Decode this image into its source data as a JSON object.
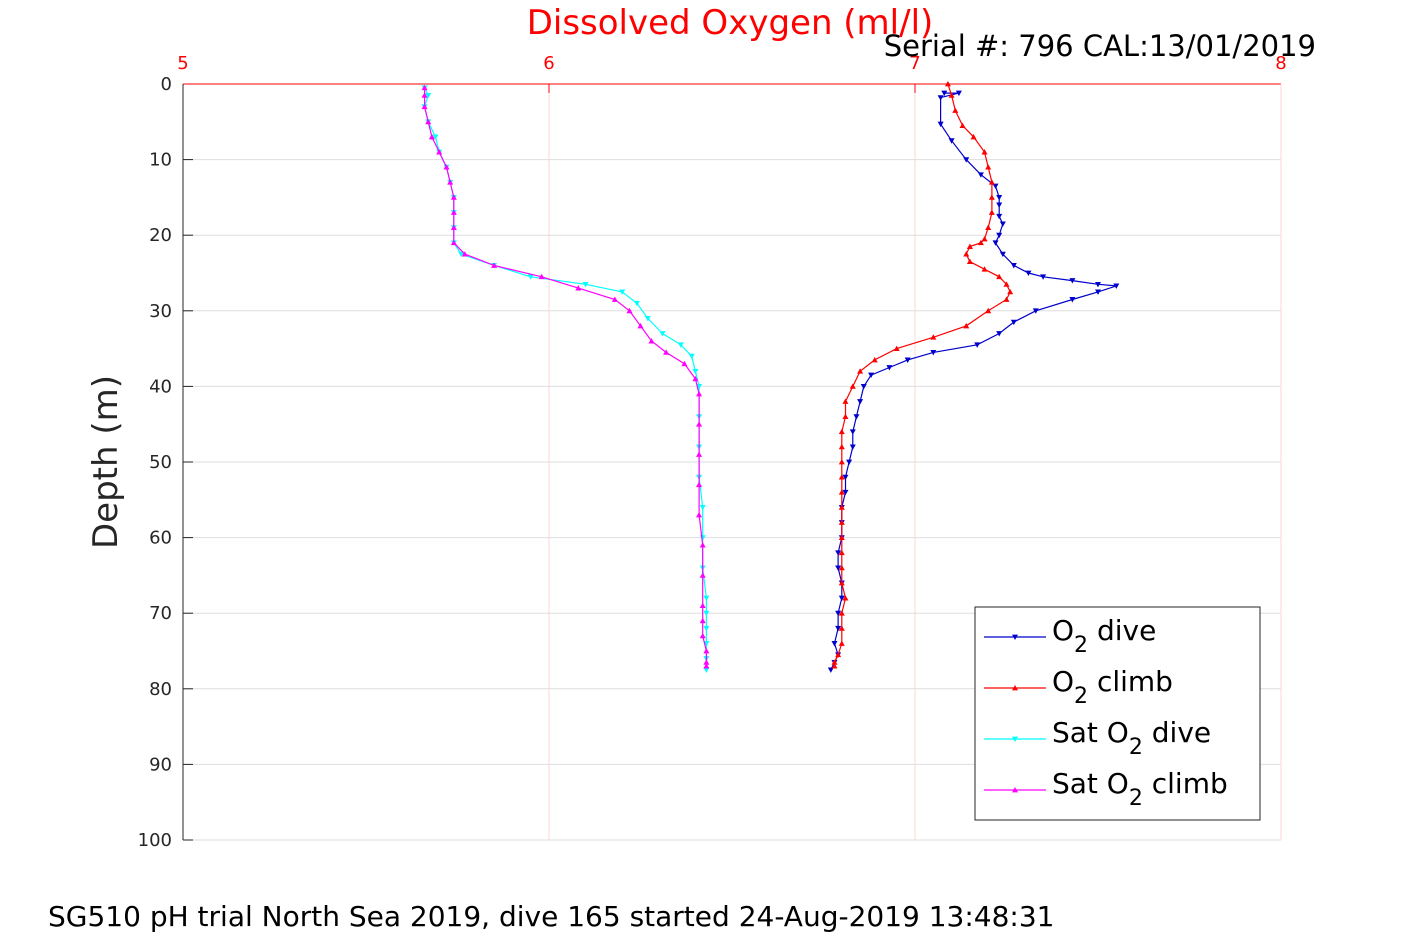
{
  "chart_data": {
    "type": "line",
    "title": "Dissolved Oxygen (ml/l)",
    "subtitle": "Serial #: 796  CAL:13/01/2019",
    "ylabel": "Depth (m)",
    "xlim": [
      5,
      8
    ],
    "ylim": [
      0,
      100
    ],
    "y_reversed": true,
    "x_axis_position": "top",
    "x_ticks": [
      "5",
      "6",
      "7",
      "8"
    ],
    "y_ticks": [
      "0",
      "10",
      "20",
      "30",
      "40",
      "50",
      "60",
      "70",
      "80",
      "90",
      "100"
    ],
    "grid": true,
    "legend_position": "bottom-right",
    "footer": "SG510 pH trial North Sea 2019, dive 165 started 24-Aug-2019 13:48:31",
    "series": [
      {
        "name": "O2 dive",
        "legend": {
          "pre": "O",
          "sub": "2",
          "post": " dive"
        },
        "color": "#0000cc",
        "marker": "triangle-down",
        "x": [
          7.08,
          7.12,
          7.07,
          7.07,
          7.1,
          7.14,
          7.18,
          7.22,
          7.23,
          7.23,
          7.23,
          7.24,
          7.23,
          7.22,
          7.24,
          7.27,
          7.31,
          7.35,
          7.43,
          7.5,
          7.55,
          7.5,
          7.43,
          7.33,
          7.27,
          7.23,
          7.17,
          7.05,
          6.98,
          6.93,
          6.88,
          6.86,
          6.85,
          6.84,
          6.83,
          6.83,
          6.82,
          6.81,
          6.81,
          6.8,
          6.8,
          6.8,
          6.79,
          6.79,
          6.8,
          6.8,
          6.79,
          6.79,
          6.78,
          6.79,
          6.78,
          6.77
        ],
        "y": [
          1.2,
          1.2,
          1.8,
          5.3,
          7.5,
          10,
          12,
          13.5,
          15,
          16,
          17.5,
          18.5,
          20,
          21,
          22.5,
          24,
          25,
          25.5,
          26,
          26.5,
          26.7,
          27.5,
          28.5,
          30,
          31.5,
          33,
          34.5,
          35.5,
          36.5,
          37.5,
          38.5,
          40,
          42,
          44,
          46,
          48,
          50,
          52,
          54,
          56,
          58,
          60,
          62,
          64,
          66,
          68,
          70,
          72,
          74,
          75.5,
          76.5,
          77.5
        ]
      },
      {
        "name": "O2 climb",
        "legend": {
          "pre": "O",
          "sub": "2",
          "post": " climb"
        },
        "color": "#ff0000",
        "marker": "triangle-up",
        "x": [
          7.09,
          7.1,
          7.11,
          7.13,
          7.16,
          7.19,
          7.2,
          7.21,
          7.21,
          7.21,
          7.2,
          7.19,
          7.18,
          7.15,
          7.14,
          7.15,
          7.19,
          7.23,
          7.25,
          7.26,
          7.25,
          7.2,
          7.14,
          7.05,
          6.95,
          6.89,
          6.85,
          6.83,
          6.81,
          6.81,
          6.8,
          6.8,
          6.8,
          6.8,
          6.8,
          6.8,
          6.8,
          6.8,
          6.8,
          6.8,
          6.8,
          6.81,
          6.8,
          6.8,
          6.8,
          6.79,
          6.78,
          6.78
        ],
        "y": [
          0,
          1.5,
          3.5,
          5.5,
          7,
          9,
          11,
          13,
          15,
          17,
          19,
          20.5,
          21,
          21.5,
          22.5,
          23.5,
          24.5,
          25.5,
          26.5,
          27.5,
          28.5,
          30,
          32,
          33.5,
          35,
          36.5,
          38,
          40,
          42,
          44,
          46,
          48,
          50,
          52,
          54,
          56,
          58,
          60,
          62,
          64,
          66,
          68,
          70,
          72,
          74,
          75.5,
          76.5,
          77
        ]
      },
      {
        "name": "Sat O2 dive",
        "legend": {
          "pre": "Sat O",
          "sub": "2",
          "post": " dive"
        },
        "color": "#00ffff",
        "marker": "triangle-down",
        "x": [
          5.66,
          5.67,
          5.66,
          5.67,
          5.69,
          5.7,
          5.72,
          5.73,
          5.74,
          5.74,
          5.74,
          5.74,
          5.76,
          5.85,
          5.95,
          6.1,
          6.2,
          6.24,
          6.27,
          6.31,
          6.36,
          6.39,
          6.4,
          6.41,
          6.41,
          6.41,
          6.41,
          6.42,
          6.42,
          6.42,
          6.43,
          6.43,
          6.43,
          6.43,
          6.43,
          6.43
        ],
        "y": [
          0.5,
          1.5,
          3,
          5,
          7,
          9,
          11,
          13,
          15,
          17,
          19,
          21,
          22.5,
          24,
          25.5,
          26.5,
          27.5,
          29,
          31,
          33,
          34.5,
          36,
          38,
          40,
          44,
          48,
          52,
          56,
          60,
          64,
          68,
          70,
          72,
          74,
          76,
          77.5
        ]
      },
      {
        "name": "Sat O2 climb",
        "legend": {
          "pre": "Sat O",
          "sub": "2",
          "post": " climb"
        },
        "color": "#ff00ff",
        "marker": "triangle-up",
        "x": [
          5.66,
          5.66,
          5.66,
          5.67,
          5.68,
          5.7,
          5.72,
          5.73,
          5.74,
          5.74,
          5.74,
          5.74,
          5.77,
          5.85,
          5.98,
          6.08,
          6.18,
          6.22,
          6.25,
          6.28,
          6.32,
          6.37,
          6.4,
          6.41,
          6.41,
          6.41,
          6.41,
          6.41,
          6.42,
          6.42,
          6.42,
          6.42,
          6.42,
          6.43,
          6.43,
          6.43
        ],
        "y": [
          0.5,
          1.5,
          3,
          5,
          7,
          9,
          11,
          13,
          15,
          17,
          19,
          21,
          22.5,
          24,
          25.5,
          27,
          28.5,
          30,
          32,
          34,
          35.5,
          37,
          39,
          41,
          45,
          49,
          53,
          57,
          61,
          65,
          69,
          71,
          73,
          75,
          76.5,
          77
        ]
      }
    ]
  }
}
